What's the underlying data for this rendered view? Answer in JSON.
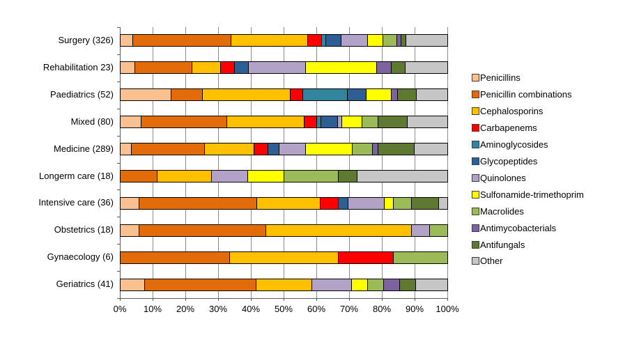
{
  "chart_data": {
    "type": "bar",
    "orientation": "horizontal",
    "stacked": true,
    "percent_scale": true,
    "title": "",
    "xlabel": "",
    "ylabel": "",
    "xlim": [
      0,
      100
    ],
    "xticks": [
      "0%",
      "10%",
      "20%",
      "30%",
      "40%",
      "50%",
      "60%",
      "70%",
      "80%",
      "90%",
      "100%"
    ],
    "grid": "vertical",
    "legend_position": "right",
    "categories": [
      "Surgery (326)",
      "Rehabilitation 23)",
      "Paediatrics (52)",
      "Mixed (80)",
      "Medicine (289)",
      "Longerm care (18)",
      "Intensive care (36)",
      "Obstetrics (18)",
      "Gynaecology (6)",
      "Geriatrics (41)"
    ],
    "series": [
      {
        "name": "Penicillins",
        "color": "#FAC090",
        "values": [
          3.7,
          4.3,
          15.4,
          6.3,
          3.1,
          0,
          5.6,
          5.6,
          0,
          7.3
        ]
      },
      {
        "name": "Penicillin combinations",
        "color": "#E36C0A",
        "values": [
          30.0,
          17.4,
          9.6,
          26.3,
          22.5,
          11.1,
          36.1,
          38.9,
          33.3,
          34.1
        ]
      },
      {
        "name": "Cephalosporins",
        "color": "#FFC000",
        "values": [
          23.4,
          8.7,
          26.9,
          23.8,
          15.2,
          16.7,
          19.4,
          44.4,
          33.3,
          17.1
        ]
      },
      {
        "name": "Carbapenems",
        "color": "#FF0000",
        "values": [
          4.3,
          4.3,
          3.8,
          3.8,
          4.2,
          0,
          5.6,
          0,
          16.7,
          0
        ]
      },
      {
        "name": "Aminoglycosides",
        "color": "#31859C",
        "values": [
          1.2,
          0,
          13.5,
          1.3,
          0,
          0,
          0,
          0,
          0,
          0
        ]
      },
      {
        "name": "Glycopeptides",
        "color": "#2E5F94",
        "values": [
          4.8,
          4.3,
          5.8,
          5.0,
          3.5,
          0,
          2.8,
          0,
          0,
          0
        ]
      },
      {
        "name": "Quinolones",
        "color": "#B2A2C7",
        "values": [
          8.0,
          17.4,
          0,
          1.3,
          8.0,
          11.1,
          11.1,
          5.6,
          0,
          12.2
        ]
      },
      {
        "name": "Sulfonamide-trimethoprim",
        "color": "#FFFF00",
        "values": [
          4.8,
          21.7,
          7.7,
          6.3,
          14.2,
          11.1,
          2.8,
          0,
          0,
          4.9
        ]
      },
      {
        "name": "Macrolides",
        "color": "#9BBB59",
        "values": [
          4.2,
          0,
          0,
          5.0,
          6.2,
          16.7,
          5.6,
          5.6,
          16.7,
          4.9
        ]
      },
      {
        "name": "Antimycobacterials",
        "color": "#7E62A0",
        "values": [
          1.3,
          4.3,
          1.9,
          0,
          1.7,
          0,
          0,
          0,
          0,
          4.9
        ]
      },
      {
        "name": "Antifungals",
        "color": "#5F7A30",
        "values": [
          1.6,
          4.3,
          5.8,
          8.8,
          11.1,
          5.6,
          8.3,
          0,
          0,
          4.9
        ]
      },
      {
        "name": "Other",
        "color": "#C6C6C6",
        "values": [
          12.7,
          13.0,
          9.6,
          12.5,
          10.3,
          27.8,
          2.8,
          0,
          0,
          9.8
        ]
      }
    ]
  }
}
